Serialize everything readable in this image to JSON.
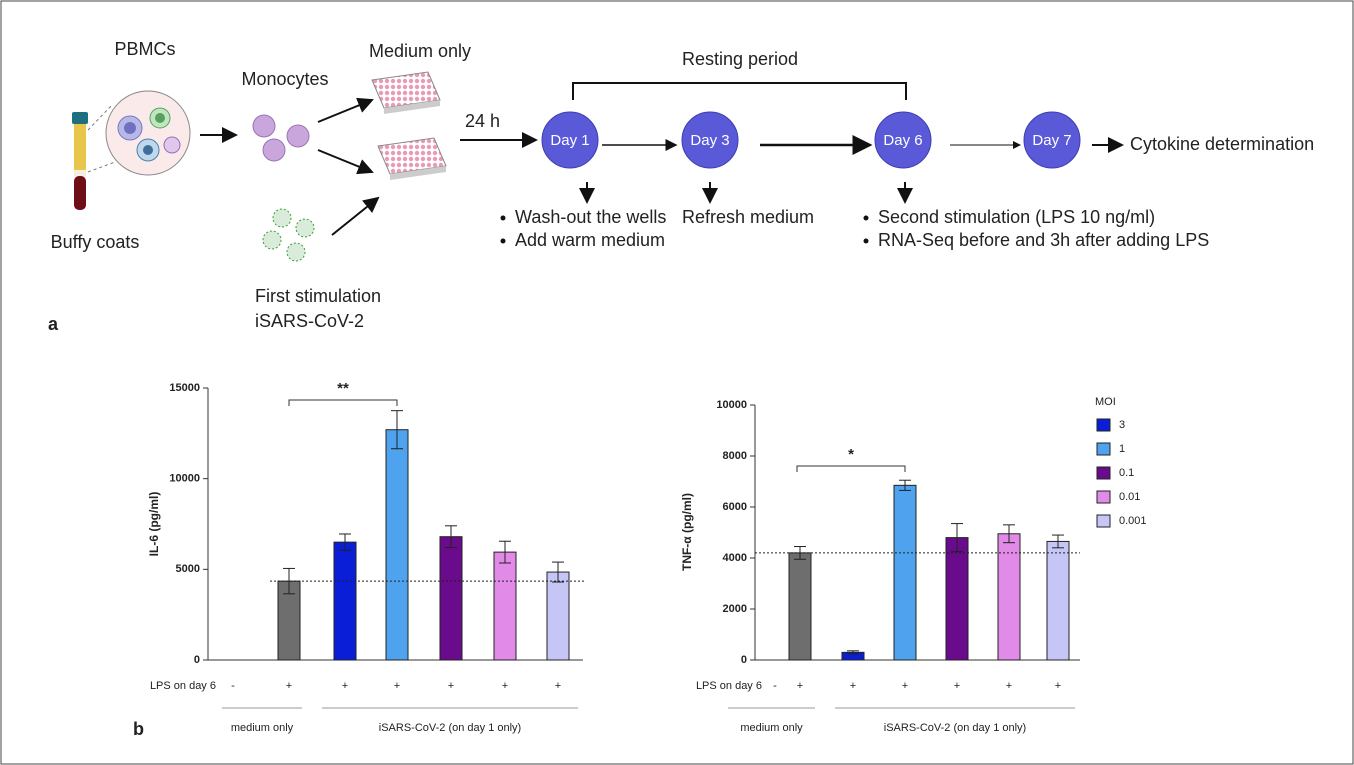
{
  "diagram": {
    "panel_a": "a",
    "panel_b": "b",
    "pbmcs": "PBMCs",
    "buffy_coats": "Buffy coats",
    "monocytes": "Monocytes",
    "medium_only": "Medium only",
    "first_stimulation": [
      "First stimulation",
      "iSARS-CoV-2"
    ],
    "incubation": "24 h",
    "resting_period": "Resting period",
    "days": [
      "Day 1",
      "Day 3",
      "Day 6",
      "Day 7"
    ],
    "endpoint": "Cytokine determination",
    "day1_steps": [
      "Wash-out the wells",
      "Add warm medium"
    ],
    "day3_step": "Refresh medium",
    "day6_steps": [
      "Second stimulation (LPS 10 ng/ml)",
      "RNA-Seq before and 3h after adding LPS"
    ]
  },
  "chart_data": [
    {
      "type": "bar",
      "y_label": "IL-6 (pg/ml)",
      "row_label": "LPS on day 6",
      "categories": [
        "-",
        "+",
        "+",
        "+",
        "+",
        "+",
        "+"
      ],
      "values": [
        null,
        4350,
        6500,
        12700,
        6800,
        5950,
        4850
      ],
      "errors": [
        null,
        700,
        450,
        1050,
        600,
        600,
        550
      ],
      "colors": [
        null,
        "#6e6e6e",
        "#0a1ed8",
        "#4ea2ee",
        "#6a0a8c",
        "#e18ae8",
        "#c6c6f6"
      ],
      "ylim": [
        0,
        15000
      ],
      "yticks": [
        0,
        5000,
        10000,
        15000
      ],
      "reference_line": 4350,
      "significance": "**",
      "group_labels": [
        "medium only",
        "iSARS-CoV-2 (on day 1 only)"
      ]
    },
    {
      "type": "bar",
      "y_label": "TNF-α (pg/ml)",
      "row_label": "LPS on day 6",
      "categories": [
        "-",
        "+",
        "+",
        "+",
        "+",
        "+",
        "+"
      ],
      "values": [
        null,
        4200,
        300,
        6850,
        4800,
        4950,
        4650
      ],
      "errors": [
        null,
        250,
        60,
        200,
        550,
        350,
        250
      ],
      "colors": [
        null,
        "#6e6e6e",
        "#0a1ed8",
        "#4ea2ee",
        "#6a0a8c",
        "#e18ae8",
        "#c6c6f6"
      ],
      "ylim": [
        0,
        10000
      ],
      "yticks": [
        0,
        2000,
        4000,
        6000,
        8000,
        10000
      ],
      "reference_line": 4200,
      "significance": "*",
      "group_labels": [
        "medium only",
        "iSARS-CoV-2 (on day 1 only)"
      ],
      "legend_title": "MOI",
      "legend": [
        {
          "name": "3",
          "color": "#0a1ed8"
        },
        {
          "name": "1",
          "color": "#4ea2ee"
        },
        {
          "name": "0.1",
          "color": "#6a0a8c"
        },
        {
          "name": "0.01",
          "color": "#e18ae8"
        },
        {
          "name": "0.001",
          "color": "#c6c6f6"
        }
      ]
    }
  ]
}
